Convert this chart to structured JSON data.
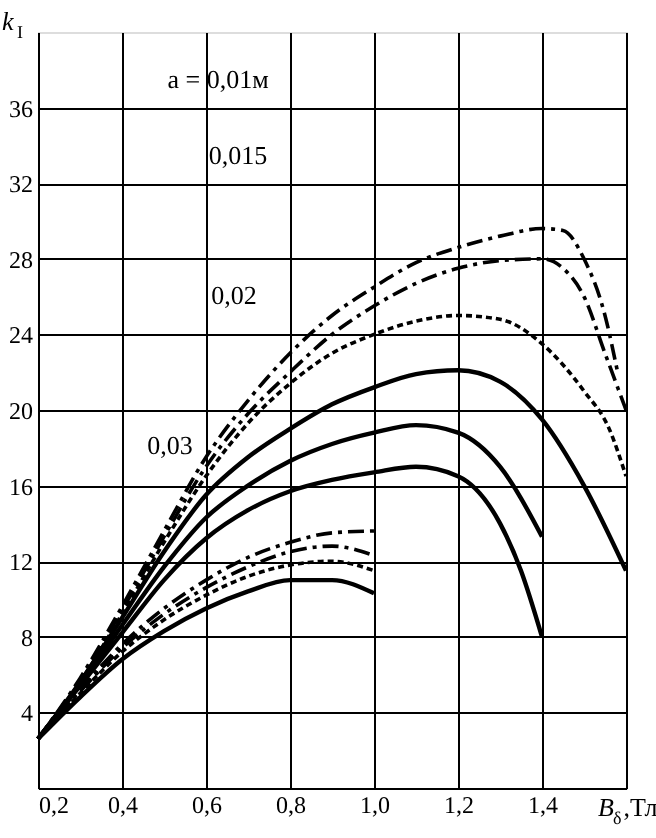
{
  "chart_data": {
    "type": "line",
    "xlabel": "B$_{δ}$,Тл",
    "ylabel": "k$_{I}$",
    "xlim": [
      0.2,
      1.6
    ],
    "ylim": [
      0,
      40
    ],
    "xticks": [
      {
        "value": 0.2,
        "label": "0,2"
      },
      {
        "value": 0.4,
        "label": "0,4"
      },
      {
        "value": 0.6,
        "label": "0,6"
      },
      {
        "value": 0.8,
        "label": "0,8"
      },
      {
        "value": 1.0,
        "label": "1,0"
      },
      {
        "value": 1.2,
        "label": "1,2"
      },
      {
        "value": 1.4,
        "label": "1,4"
      },
      {
        "value": 1.6,
        "label": null
      }
    ],
    "yticks": [
      4,
      8,
      12,
      16,
      20,
      24,
      28,
      32,
      36
    ],
    "grid": true,
    "marker": "none",
    "annotations": [
      "a = 0,01м",
      "0,015",
      "0,02",
      "0,03"
    ],
    "series": [
      {
        "color": "#000000",
        "line_style": "dashed",
        "x": [
          0.2,
          0.3,
          0.4,
          0.5,
          0.6,
          0.7,
          0.8,
          0.9,
          1.0,
          1.1,
          1.2,
          1.3,
          1.4,
          1.45,
          1.5,
          1.55,
          1.58
        ],
        "values": [
          2.6,
          5.8,
          9.6,
          13.6,
          17.5,
          20.5,
          23,
          25,
          26.5,
          27.8,
          28.6,
          29.2,
          29.6,
          29.5,
          28,
          25,
          22
        ]
      },
      {
        "color": "#000000",
        "line_style": "dashed",
        "x": [
          0.2,
          0.3,
          0.4,
          0.5,
          0.6,
          0.7,
          0.8,
          0.9,
          1.0,
          1.1,
          1.2,
          1.3,
          1.4,
          1.45,
          1.5,
          1.55,
          1.6
        ],
        "values": [
          2.6,
          5.7,
          9.4,
          13.3,
          17,
          19.8,
          22,
          24,
          25.5,
          26.7,
          27.5,
          27.9,
          28,
          27.5,
          26,
          23,
          20
        ]
      },
      {
        "color": "#000000",
        "line_style": "dotted",
        "x": [
          0.2,
          0.3,
          0.4,
          0.5,
          0.6,
          0.7,
          0.8,
          0.9,
          1.0,
          1.1,
          1.2,
          1.3,
          1.4,
          1.5,
          1.56,
          1.6
        ],
        "values": [
          2.6,
          5.6,
          9.2,
          13,
          16.5,
          19.3,
          21.4,
          23,
          24,
          24.7,
          25,
          24.8,
          23.5,
          21,
          19,
          16.5
        ]
      },
      {
        "color": "#000000",
        "line_style": "solid",
        "x": [
          0.2,
          0.3,
          0.4,
          0.5,
          0.6,
          0.7,
          0.8,
          0.9,
          1.0,
          1.1,
          1.2,
          1.3,
          1.4,
          1.5,
          1.6
        ],
        "values": [
          2.6,
          5.6,
          9,
          12.5,
          15.5,
          17.5,
          19,
          20.3,
          21.2,
          21.9,
          22.1,
          21.5,
          19.5,
          16,
          11.5
        ]
      },
      {
        "color": "#000000",
        "line_style": "solid",
        "x": [
          0.2,
          0.3,
          0.4,
          0.5,
          0.6,
          0.7,
          0.8,
          0.9,
          1.0,
          1.1,
          1.2,
          1.3,
          1.4
        ],
        "values": [
          2.6,
          5.5,
          8.6,
          11.7,
          14.3,
          16,
          17.3,
          18.2,
          18.8,
          19.2,
          18.8,
          17,
          13.3
        ]
      },
      {
        "color": "#000000",
        "line_style": "solid",
        "x": [
          0.2,
          0.3,
          0.4,
          0.5,
          0.6,
          0.7,
          0.8,
          0.9,
          1.0,
          1.1,
          1.2,
          1.3,
          1.35,
          1.4
        ],
        "values": [
          2.6,
          5.4,
          8.2,
          11,
          13.2,
          14.7,
          15.7,
          16.3,
          16.7,
          17,
          16.5,
          14,
          11.5,
          8
        ]
      },
      {
        "color": "#000000",
        "line_style": "dashed",
        "x": [
          0.2,
          0.3,
          0.4,
          0.5,
          0.6,
          0.7,
          0.8,
          0.9,
          1.0
        ],
        "values": [
          2.6,
          5.2,
          7.6,
          9.5,
          11,
          12.2,
          13,
          13.5,
          13.6
        ]
      },
      {
        "color": "#000000",
        "line_style": "dashed",
        "x": [
          0.2,
          0.3,
          0.4,
          0.5,
          0.6,
          0.7,
          0.8,
          0.9,
          1.0
        ],
        "values": [
          2.6,
          5.1,
          7.4,
          9.2,
          10.6,
          11.7,
          12.5,
          12.8,
          12.3
        ]
      },
      {
        "color": "#000000",
        "line_style": "dotted",
        "x": [
          0.2,
          0.3,
          0.4,
          0.5,
          0.6,
          0.7,
          0.8,
          0.9,
          1.0
        ],
        "values": [
          2.6,
          5,
          7.2,
          8.9,
          10.2,
          11.2,
          11.8,
          12,
          11.5
        ]
      },
      {
        "color": "#000000",
        "line_style": "solid",
        "x": [
          0.2,
          0.3,
          0.4,
          0.5,
          0.6,
          0.7,
          0.8,
          0.9,
          1.0
        ],
        "values": [
          2.6,
          4.8,
          6.8,
          8.3,
          9.5,
          10.4,
          11,
          11,
          10.3
        ]
      }
    ]
  }
}
